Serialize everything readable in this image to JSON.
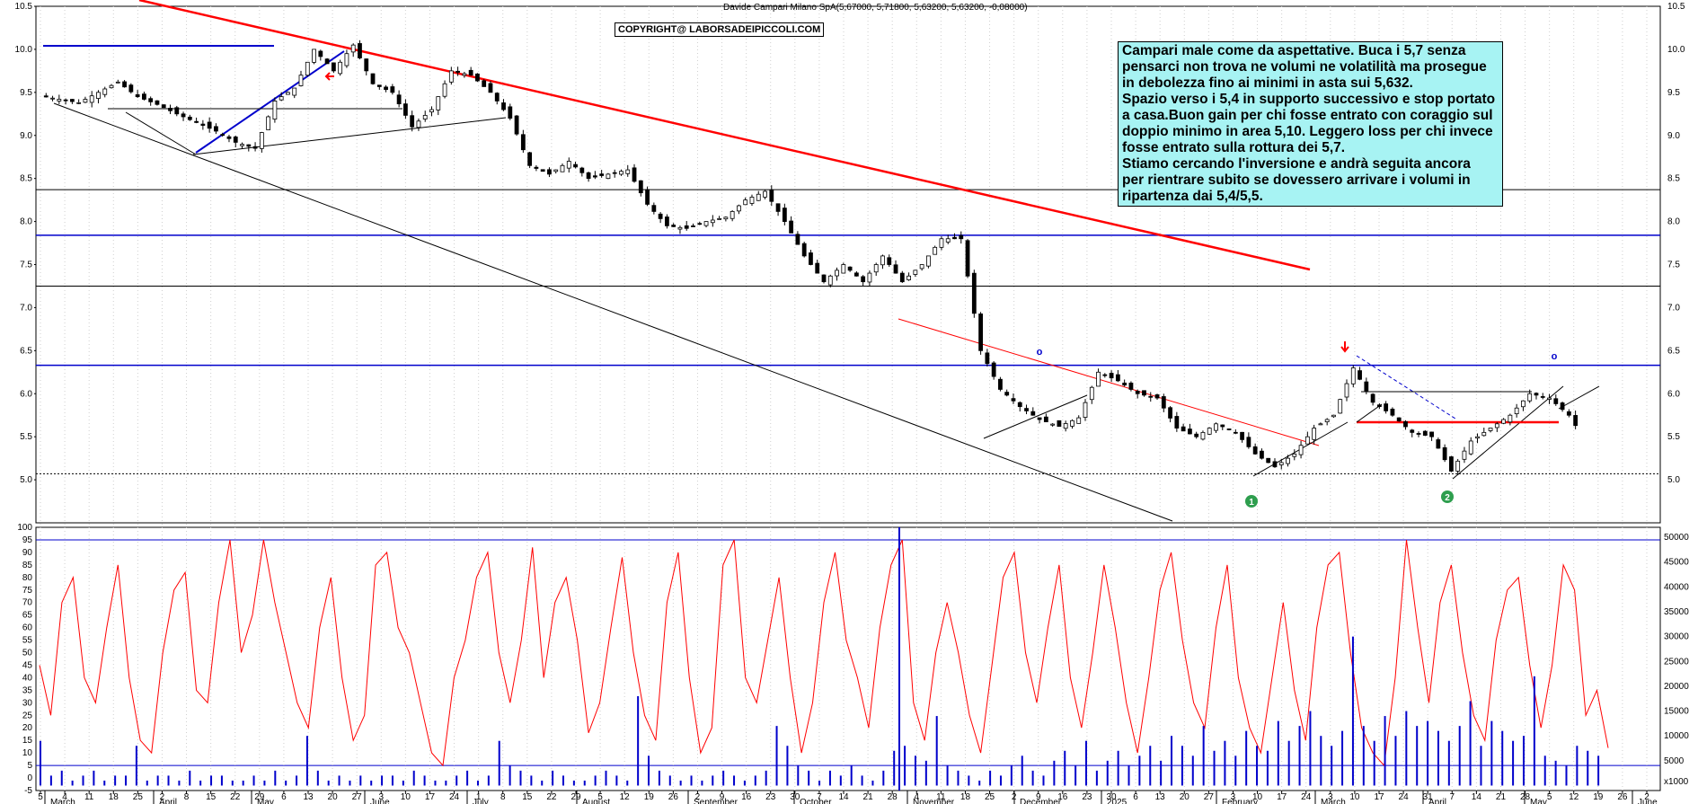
{
  "header_text": "Davide Campari Milano SpA(5,67000, 5,71800, 5,63200, 5,63200, -0,08000)",
  "copyright": "COPYRIGHT@ LABORSADEIPICCOLI.COM",
  "annotation_lines": [
    "Campari male come da aspettative. Buca i 5,7 senza",
    "pensarci non trova ne volumi ne volatilità ma prosegue",
    "in debolezza fino ai minimi in asta sui 5,632.",
    "Spazio verso i 5,4 in supporto successivo e stop portato",
    "a casa.Buon gain per chi fosse entrato con coraggio sul",
    "doppio minimo in area 5,10. Leggero loss per chi invece",
    "fosse entrato sulla rottura dei 5,7.",
    "Stiamo cercando l'inversione e andrà seguita ancora",
    "per rientrare subito se dovessero arrivare i volumi in",
    "ripartenza dai 5,4/5,5."
  ],
  "markers": {
    "m1": "1",
    "m2": "2",
    "o1": "o",
    "o2": "o"
  },
  "volume_multiplier": "x1000",
  "colors": {
    "up": "#ffffff",
    "down": "#000000",
    "trend_red": "#ff0000",
    "trend_blue": "#0000cc",
    "volume": "#0000cc",
    "oscillator": "#ff0000",
    "annotation_bg": "#a7f3f3"
  },
  "chart_data": {
    "type": "candlestick",
    "price_axis": {
      "ylim": [
        4.5,
        10.5
      ],
      "ticks": [
        "10.5",
        "10.0",
        "9.5",
        "9.0",
        "8.5",
        "8.0",
        "7.5",
        "7.0",
        "6.5",
        "6.0",
        "5.5",
        "5.0"
      ]
    },
    "oscillator_axis": {
      "ylim": [
        -5,
        100
      ],
      "ticks": [
        "100",
        "95",
        "90",
        "85",
        "80",
        "75",
        "70",
        "65",
        "60",
        "55",
        "50",
        "45",
        "40",
        "35",
        "30",
        "25",
        "20",
        "15",
        "10",
        "5",
        "0",
        "-5"
      ]
    },
    "volume_axis": {
      "ylim": [
        -1000,
        52000
      ],
      "ticks": [
        "50000",
        "45000",
        "40000",
        "35000",
        "30000",
        "25000",
        "20000",
        "15000",
        "10000",
        "5000"
      ]
    },
    "x_day_labels": [
      "5",
      "4",
      "11",
      "18",
      "25",
      "2",
      "8",
      "15",
      "22",
      "29",
      "6",
      "13",
      "20",
      "27",
      "3",
      "10",
      "17",
      "24",
      "1",
      "8",
      "15",
      "22",
      "29",
      "5",
      "12",
      "19",
      "26",
      "2",
      "9",
      "16",
      "23",
      "30",
      "7",
      "14",
      "21",
      "28",
      "4",
      "11",
      "18",
      "25",
      "2",
      "9",
      "16",
      "23",
      "30",
      "6",
      "13",
      "20",
      "27",
      "3",
      "10",
      "17",
      "24",
      "3",
      "10",
      "17",
      "24",
      "31",
      "7",
      "14",
      "21",
      "28",
      "5",
      "12",
      "19",
      "26",
      "2"
    ],
    "x_month_labels": [
      "March",
      "April",
      "May",
      "June",
      "July",
      "August",
      "September",
      "October",
      "November",
      "December",
      "2025",
      "February",
      "March",
      "April",
      "May",
      "June"
    ],
    "horizontal_levels": [
      {
        "value": 8.37,
        "color": "#000000"
      },
      {
        "value": 7.84,
        "color": "#0000cc"
      },
      {
        "value": 7.25,
        "color": "#000000"
      },
      {
        "value": 6.33,
        "color": "#0000cc"
      },
      {
        "value": 5.07,
        "color": "#000000",
        "style": "dotted"
      }
    ],
    "series": [
      {
        "name": "Price",
        "type": "candlestick",
        "points": [
          {
            "i": 0,
            "c": 9.46
          },
          {
            "i": 3,
            "c": 9.42
          },
          {
            "i": 6,
            "c": 9.38
          },
          {
            "i": 9,
            "c": 9.5
          },
          {
            "i": 12,
            "c": 9.62
          },
          {
            "i": 15,
            "c": 9.45
          },
          {
            "i": 18,
            "c": 9.36
          },
          {
            "i": 21,
            "c": 9.25
          },
          {
            "i": 24,
            "c": 9.15
          },
          {
            "i": 27,
            "c": 9.05
          },
          {
            "i": 30,
            "c": 8.92
          },
          {
            "i": 33,
            "c": 8.85
          },
          {
            "i": 36,
            "c": 9.4
          },
          {
            "i": 39,
            "c": 9.55
          },
          {
            "i": 42,
            "c": 10.0
          },
          {
            "i": 45,
            "c": 9.75
          },
          {
            "i": 48,
            "c": 10.05
          },
          {
            "i": 51,
            "c": 9.6
          },
          {
            "i": 54,
            "c": 9.5
          },
          {
            "i": 57,
            "c": 9.1
          },
          {
            "i": 60,
            "c": 9.3
          },
          {
            "i": 63,
            "c": 9.75
          },
          {
            "i": 66,
            "c": 9.7
          },
          {
            "i": 69,
            "c": 9.5
          },
          {
            "i": 72,
            "c": 9.2
          },
          {
            "i": 75,
            "c": 8.65
          },
          {
            "i": 78,
            "c": 8.55
          },
          {
            "i": 81,
            "c": 8.7
          },
          {
            "i": 84,
            "c": 8.5
          },
          {
            "i": 87,
            "c": 8.55
          },
          {
            "i": 90,
            "c": 8.6
          },
          {
            "i": 93,
            "c": 8.2
          },
          {
            "i": 96,
            "c": 7.95
          },
          {
            "i": 99,
            "c": 7.92
          },
          {
            "i": 102,
            "c": 8.0
          },
          {
            "i": 105,
            "c": 8.05
          },
          {
            "i": 108,
            "c": 8.25
          },
          {
            "i": 111,
            "c": 8.35
          },
          {
            "i": 114,
            "c": 8.0
          },
          {
            "i": 117,
            "c": 7.6
          },
          {
            "i": 120,
            "c": 7.3
          },
          {
            "i": 123,
            "c": 7.5
          },
          {
            "i": 126,
            "c": 7.3
          },
          {
            "i": 129,
            "c": 7.6
          },
          {
            "i": 132,
            "c": 7.3
          },
          {
            "i": 135,
            "c": 7.5
          },
          {
            "i": 138,
            "c": 7.8
          },
          {
            "i": 141,
            "c": 7.8
          },
          {
            "i": 144,
            "c": 6.5
          },
          {
            "i": 147,
            "c": 6.05
          },
          {
            "i": 150,
            "c": 5.85
          },
          {
            "i": 153,
            "c": 5.7
          },
          {
            "i": 156,
            "c": 5.62
          },
          {
            "i": 159,
            "c": 5.72
          },
          {
            "i": 162,
            "c": 6.25
          },
          {
            "i": 165,
            "c": 6.15
          },
          {
            "i": 168,
            "c": 6.0
          },
          {
            "i": 171,
            "c": 5.95
          },
          {
            "i": 174,
            "c": 5.6
          },
          {
            "i": 177,
            "c": 5.5
          },
          {
            "i": 180,
            "c": 5.65
          },
          {
            "i": 183,
            "c": 5.55
          },
          {
            "i": 186,
            "c": 5.3
          },
          {
            "i": 189,
            "c": 5.15
          },
          {
            "i": 192,
            "c": 5.3
          },
          {
            "i": 195,
            "c": 5.6
          },
          {
            "i": 198,
            "c": 5.75
          },
          {
            "i": 201,
            "c": 6.3
          },
          {
            "i": 204,
            "c": 5.9
          },
          {
            "i": 207,
            "c": 5.75
          },
          {
            "i": 210,
            "c": 5.55
          },
          {
            "i": 213,
            "c": 5.5
          },
          {
            "i": 216,
            "c": 5.1
          },
          {
            "i": 219,
            "c": 5.45
          },
          {
            "i": 222,
            "c": 5.6
          },
          {
            "i": 225,
            "c": 5.75
          },
          {
            "i": 228,
            "c": 6.0
          },
          {
            "i": 231,
            "c": 5.95
          },
          {
            "i": 234,
            "c": 5.75
          },
          {
            "i": 235,
            "c": 5.63
          }
        ]
      },
      {
        "name": "Oscillator",
        "type": "line",
        "values": [
          45,
          25,
          70,
          80,
          40,
          30,
          60,
          85,
          40,
          15,
          10,
          50,
          75,
          82,
          35,
          30,
          70,
          95,
          50,
          65,
          95,
          70,
          50,
          30,
          20,
          60,
          80,
          40,
          15,
          25,
          85,
          90,
          60,
          50,
          30,
          10,
          5,
          40,
          55,
          80,
          90,
          50,
          30,
          55,
          92,
          40,
          70,
          80,
          55,
          18,
          30,
          60,
          88,
          50,
          25,
          15,
          70,
          90,
          40,
          10,
          20,
          85,
          95,
          40,
          30,
          55,
          80,
          40,
          10,
          30,
          70,
          90,
          55,
          40,
          20,
          60,
          85,
          95,
          30,
          15,
          50,
          70,
          50,
          25,
          10,
          45,
          80,
          90,
          50,
          30,
          60,
          85,
          40,
          20,
          50,
          85,
          60,
          30,
          10,
          40,
          75,
          90,
          55,
          30,
          20,
          60,
          85,
          40,
          20,
          10,
          40,
          70,
          35,
          15,
          60,
          85,
          90,
          50,
          20,
          10,
          5,
          40,
          95,
          60,
          30,
          70,
          85,
          50,
          25,
          15,
          55,
          75,
          80,
          45,
          20,
          45,
          85,
          75,
          25,
          35,
          12
        ]
      },
      {
        "name": "Volume",
        "type": "bar",
        "values": [
          9,
          2,
          3,
          1,
          2,
          3,
          1,
          2,
          2,
          8,
          1,
          2,
          2,
          1,
          3,
          1,
          2,
          2,
          1,
          1,
          2,
          1,
          3,
          1,
          2,
          10,
          3,
          1,
          2,
          1,
          2,
          1,
          2,
          2,
          1,
          3,
          2,
          1,
          1,
          2,
          3,
          1,
          2,
          9,
          4,
          3,
          2,
          1,
          3,
          2,
          1,
          1,
          2,
          3,
          2,
          1,
          18,
          6,
          3,
          2,
          1,
          2,
          1,
          2,
          3,
          2,
          1,
          2,
          3,
          12,
          8,
          4,
          3,
          1,
          3,
          2,
          4,
          2,
          1,
          3,
          7,
          8,
          6,
          5,
          14,
          4,
          3,
          2,
          1,
          3,
          2,
          4,
          6,
          3,
          2,
          5,
          7,
          4,
          9,
          3,
          5,
          7,
          4,
          6,
          8,
          5,
          10,
          8,
          6,
          12,
          7,
          9,
          6,
          11,
          8,
          7,
          13,
          9,
          12,
          15,
          10,
          8,
          11,
          30,
          12,
          9,
          14,
          10,
          15,
          12,
          13,
          11,
          9,
          12,
          17,
          8,
          13,
          11,
          9,
          10,
          22,
          6,
          5,
          4,
          8,
          7,
          6
        ]
      }
    ]
  }
}
